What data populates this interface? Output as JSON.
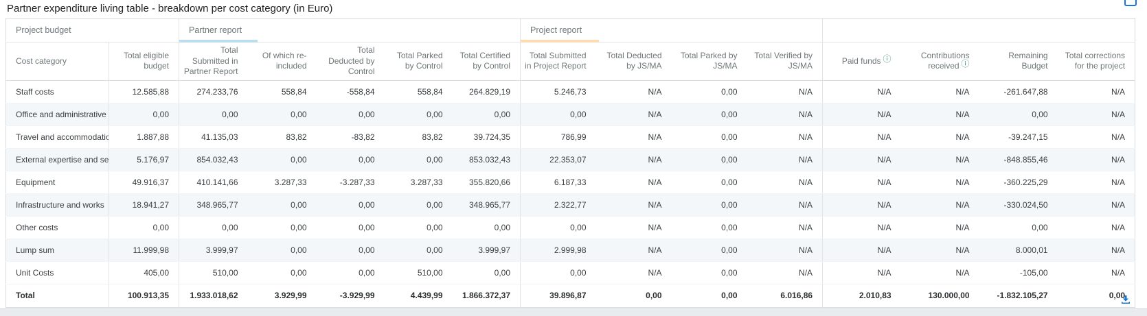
{
  "title": "Partner expenditure living table - breakdown per cost category (in Euro)",
  "colors": {
    "accent_blue": "#1976d2",
    "partner_report_underline": "#bcdcee",
    "project_report_underline": "#fbdcb4",
    "row_stripe": "#f3f7f9",
    "info_icon": "#3a8a78"
  },
  "table": {
    "groups": [
      {
        "label": "Project budget",
        "span": 2,
        "underline": ""
      },
      {
        "label": "Partner report",
        "span": 5,
        "underline": "#bcdcee"
      },
      {
        "label": "Project report",
        "span": 4,
        "underline": "#fbdcb4"
      },
      {
        "label": "",
        "span": 4,
        "underline": ""
      }
    ],
    "columns": [
      {
        "label": "Cost category",
        "info": false
      },
      {
        "label": "Total eligible budget",
        "info": false
      },
      {
        "label": "Total Submitted in Partner Report",
        "info": false
      },
      {
        "label": "Of which re-included",
        "info": false
      },
      {
        "label": "Total Deducted by Control",
        "info": false
      },
      {
        "label": "Total Parked by Control",
        "info": false
      },
      {
        "label": "Total Certified by Control",
        "info": false
      },
      {
        "label": "Total Submitted in Project Report",
        "info": false
      },
      {
        "label": "Total Deducted by JS/MA",
        "info": false
      },
      {
        "label": "Total Parked by JS/MA",
        "info": false
      },
      {
        "label": "Total Verified by JS/MA",
        "info": false
      },
      {
        "label": "Paid funds",
        "info": true
      },
      {
        "label": "Contributions received",
        "info": true
      },
      {
        "label": "Remaining Budget",
        "info": false
      },
      {
        "label": "Total corrections for the project",
        "info": false
      }
    ],
    "rows": [
      {
        "category": "Staff costs",
        "total": false,
        "values": [
          "12.585,88",
          "274.233,76",
          "558,84",
          "-558,84",
          "558,84",
          "264.829,19",
          "5.246,73",
          "N/A",
          "0,00",
          "N/A",
          "N/A",
          "N/A",
          "-261.647,88",
          "N/A"
        ]
      },
      {
        "category": "Office and administrative costs",
        "total": false,
        "values": [
          "0,00",
          "0,00",
          "0,00",
          "0,00",
          "0,00",
          "0,00",
          "0,00",
          "N/A",
          "0,00",
          "N/A",
          "N/A",
          "N/A",
          "0,00",
          "N/A"
        ]
      },
      {
        "category": "Travel and accommodation",
        "total": false,
        "values": [
          "1.887,88",
          "41.135,03",
          "83,82",
          "-83,82",
          "83,82",
          "39.724,35",
          "786,99",
          "N/A",
          "0,00",
          "N/A",
          "N/A",
          "N/A",
          "-39.247,15",
          "N/A"
        ]
      },
      {
        "category": "External expertise and services",
        "total": false,
        "values": [
          "5.176,97",
          "854.032,43",
          "0,00",
          "0,00",
          "0,00",
          "853.032,43",
          "22.353,07",
          "N/A",
          "0,00",
          "N/A",
          "N/A",
          "N/A",
          "-848.855,46",
          "N/A"
        ]
      },
      {
        "category": "Equipment",
        "total": false,
        "values": [
          "49.916,37",
          "410.141,66",
          "3.287,33",
          "-3.287,33",
          "3.287,33",
          "355.820,66",
          "6.187,33",
          "N/A",
          "0,00",
          "N/A",
          "N/A",
          "N/A",
          "-360.225,29",
          "N/A"
        ]
      },
      {
        "category": "Infrastructure and works",
        "total": false,
        "values": [
          "18.941,27",
          "348.965,77",
          "0,00",
          "0,00",
          "0,00",
          "348.965,77",
          "2.322,77",
          "N/A",
          "0,00",
          "N/A",
          "N/A",
          "N/A",
          "-330.024,50",
          "N/A"
        ]
      },
      {
        "category": "Other costs",
        "total": false,
        "values": [
          "0,00",
          "0,00",
          "0,00",
          "0,00",
          "0,00",
          "0,00",
          "0,00",
          "N/A",
          "0,00",
          "N/A",
          "N/A",
          "N/A",
          "0,00",
          "N/A"
        ]
      },
      {
        "category": "Lump sum",
        "total": false,
        "values": [
          "11.999,98",
          "3.999,97",
          "0,00",
          "0,00",
          "0,00",
          "3.999,97",
          "2.999,98",
          "N/A",
          "0,00",
          "N/A",
          "N/A",
          "N/A",
          "8.000,01",
          "N/A"
        ]
      },
      {
        "category": "Unit Costs",
        "total": false,
        "values": [
          "405,00",
          "510,00",
          "0,00",
          "0,00",
          "510,00",
          "0,00",
          "0,00",
          "N/A",
          "0,00",
          "N/A",
          "N/A",
          "N/A",
          "-105,00",
          "N/A"
        ]
      },
      {
        "category": "Total",
        "total": true,
        "values": [
          "100.913,35",
          "1.933.018,62",
          "3.929,99",
          "-3.929,99",
          "4.439,99",
          "1.866.372,37",
          "39.896,87",
          "0,00",
          "0,00",
          "6.016,86",
          "2.010,83",
          "130.000,00",
          "-1.832.105,27",
          "0,00"
        ]
      }
    ]
  },
  "icons": {
    "info": "ⓘ",
    "download": "download-arrow-into-tray",
    "corner": "expand-window"
  }
}
